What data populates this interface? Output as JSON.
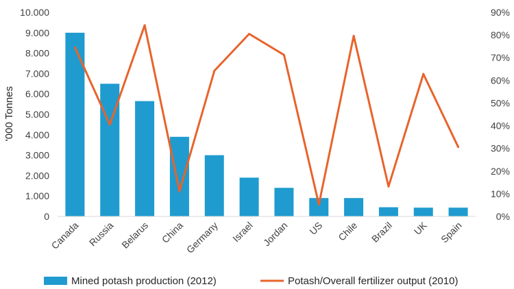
{
  "chart_data": {
    "type": "bar+line",
    "categories": [
      "Canada",
      "Russia",
      "Belarus",
      "China",
      "Germany",
      "Israel",
      "Jordan",
      "US",
      "Chile",
      "Brazil",
      "UK",
      "Spain"
    ],
    "series": [
      {
        "name": "Mined potash production (2012)",
        "type": "bar",
        "axis": "left",
        "color": "#1F9BCF",
        "values": [
          9000,
          6500,
          5650,
          3900,
          3000,
          1900,
          1400,
          900,
          900,
          450,
          430,
          430
        ]
      },
      {
        "name": "Potash/Overall fertilizer output (2010)",
        "type": "line",
        "axis": "right",
        "color": "#E8632B",
        "values": [
          74.5,
          40.5,
          84.3,
          11.1,
          64.2,
          80.5,
          71.2,
          5.3,
          79.6,
          13.2,
          62.8,
          30.6
        ]
      }
    ],
    "ylabel": "'000 Tonnes",
    "ylim": [
      0,
      10000
    ],
    "y_ticks": [
      "0",
      "1.000",
      "2.000",
      "3.000",
      "4.000",
      "5.000",
      "6.000",
      "7.000",
      "8.000",
      "9.000",
      "10.000"
    ],
    "y2lim": [
      0,
      90
    ],
    "y2_ticks": [
      "0%",
      "10%",
      "20%",
      "30%",
      "40%",
      "50%",
      "60%",
      "70%",
      "80%",
      "90%"
    ],
    "grid": false,
    "legend_position": "bottom"
  }
}
